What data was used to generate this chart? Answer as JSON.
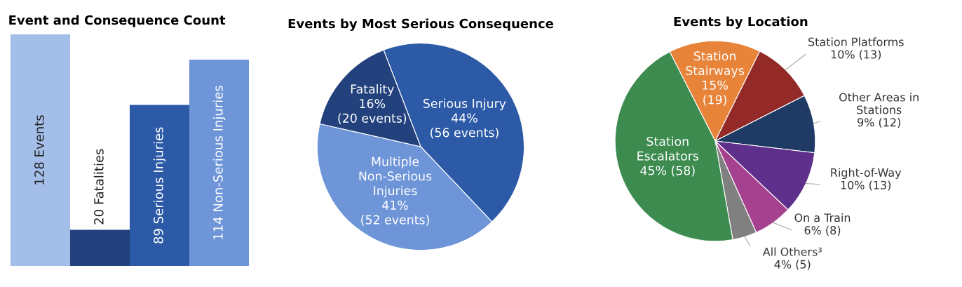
{
  "chart_data": [
    {
      "type": "bar",
      "title": "Event and Consequence Count",
      "categories": [
        null,
        null,
        null,
        null
      ],
      "values": [
        128,
        20,
        89,
        114
      ],
      "colors": [
        "#a3bfe9",
        "#23427d",
        "#2c5aa7",
        "#6e95d8"
      ],
      "value_labels": [
        "128 Events",
        "20 Fatalities",
        "89 Serious Injuries",
        "114 Non-Serious Injuries"
      ]
    },
    {
      "type": "pie",
      "title": "Events by Most Serious Consequence",
      "categories": [
        "Serious Injury",
        "Multiple\nNon-Serious\nInjuries",
        "Fatality"
      ],
      "values": [
        56,
        52,
        20
      ],
      "colors": [
        "#2c5aa7",
        "#6e95d8",
        "#23427d"
      ],
      "value_labels": [
        "44%\n(56 events)",
        "41%\n(52 events)",
        "16%\n(20 events)"
      ]
    },
    {
      "type": "pie",
      "title": "Events by Location",
      "categories": [
        "Station\nStairways",
        "Station Platforms",
        "Other Areas in\nStations",
        "Right-of-Way",
        "On a Train",
        "All Others³",
        "Station\nEscalators"
      ],
      "values": [
        19,
        13,
        12,
        13,
        8,
        5,
        58
      ],
      "colors": [
        "#e8833a",
        "#932a27",
        "#1f3a64",
        "#5f308b",
        "#a5418f",
        "#808080",
        "#3d8b4f"
      ],
      "value_labels": [
        "15%\n(19)",
        "10% (13)",
        "9% (12)",
        "10% (13)",
        "6% (8)",
        "4% (5)",
        "45% (58)"
      ]
    }
  ]
}
